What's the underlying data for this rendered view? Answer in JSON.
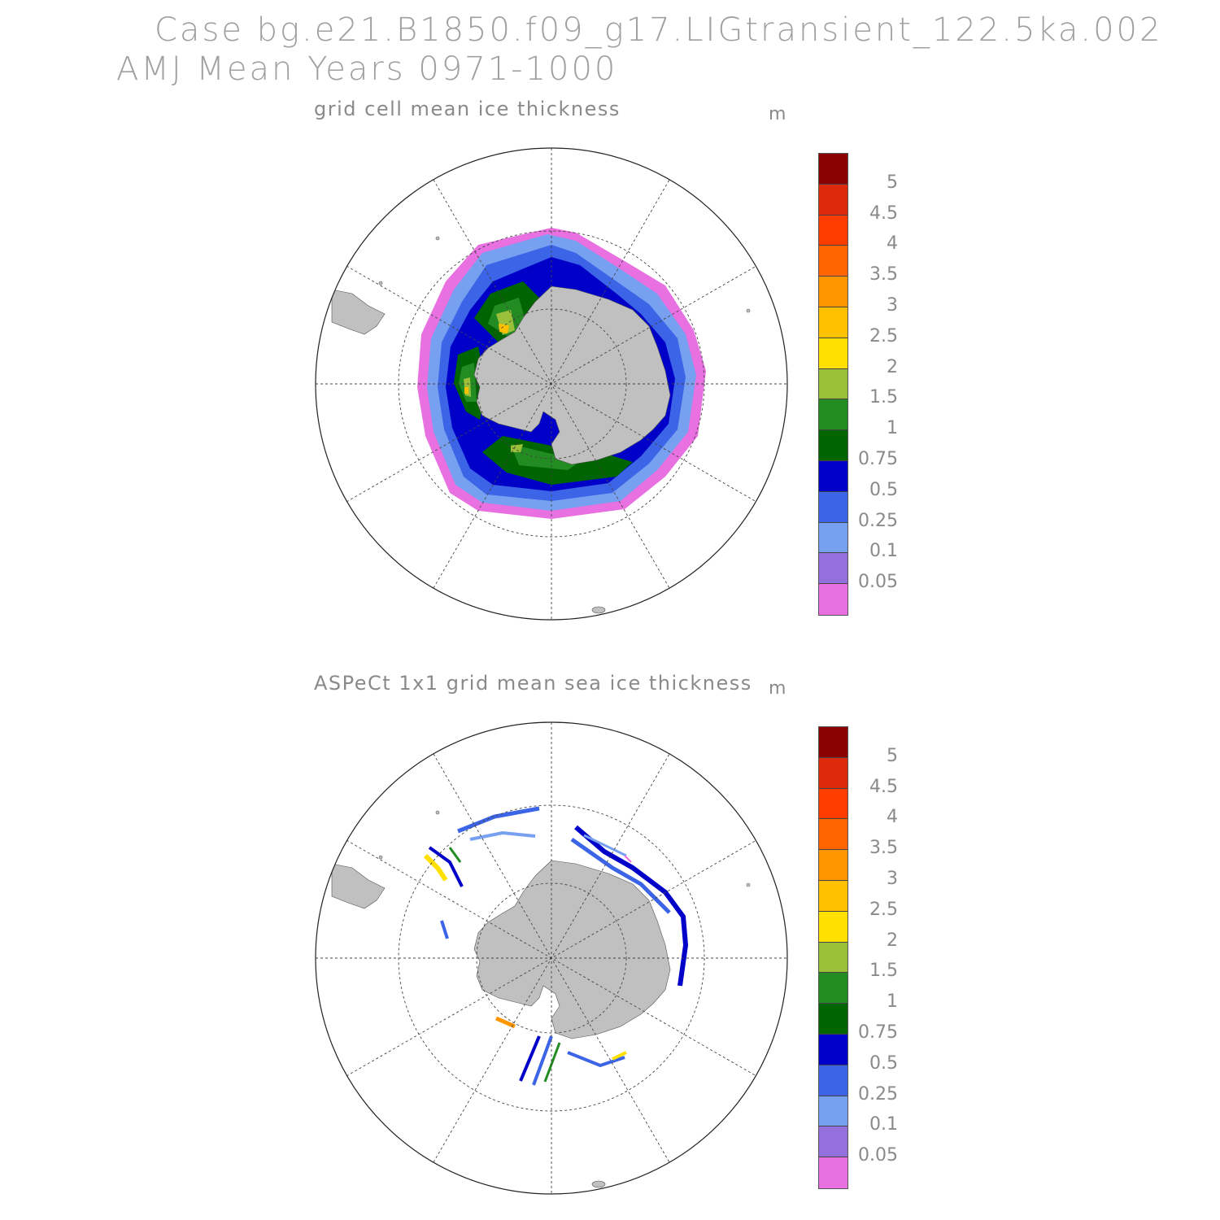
{
  "title": {
    "line1": "Case bg.e21.B1850.f09_g17.LIGtransient_122.5ka.002",
    "line2": "AMJ Mean    Years 0971-1000"
  },
  "panels": [
    {
      "title": "grid cell mean ice thickness",
      "unit": "m"
    },
    {
      "title": "ASPeCt 1x1 grid mean sea ice thickness",
      "unit": "m"
    }
  ],
  "colorbar": {
    "labels": [
      "5",
      "4.5",
      "4",
      "3.5",
      "3",
      "2.5",
      "2",
      "1.5",
      "1",
      "0.75",
      "0.5",
      "0.25",
      "0.1",
      "0.05"
    ],
    "colors_top_to_bottom": [
      "#8b0000",
      "#dc2a0a",
      "#ff3c00",
      "#ff6400",
      "#ff9600",
      "#ffc000",
      "#ffe000",
      "#9ac03a",
      "#228b22",
      "#006400",
      "#0000c8",
      "#3c64e6",
      "#78a0f0",
      "#9370db",
      "#e870e0"
    ]
  },
  "colors": {
    "land": "#c0c0c0",
    "ice_shelf": "#ffffff",
    "grid": "#444444"
  }
}
